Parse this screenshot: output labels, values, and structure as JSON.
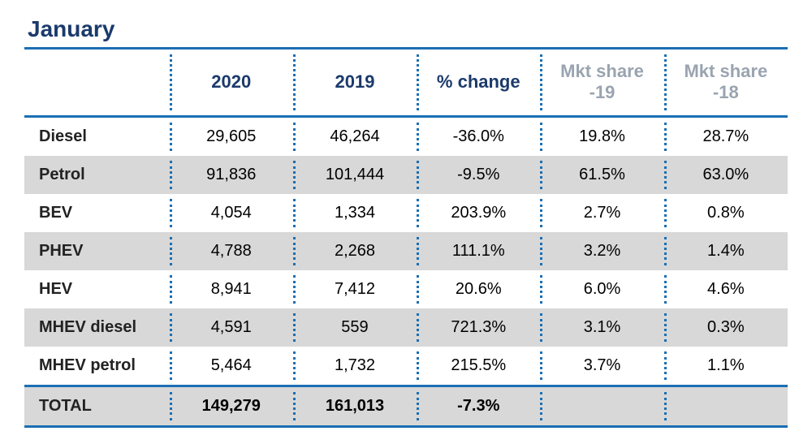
{
  "title": "January",
  "table": {
    "columns": [
      {
        "label": "",
        "muted": false
      },
      {
        "label": "2020",
        "muted": false
      },
      {
        "label": "2019",
        "muted": false
      },
      {
        "label": "% change",
        "muted": false
      },
      {
        "label": "Mkt share -19",
        "muted": true
      },
      {
        "label": "Mkt share -18",
        "muted": true
      }
    ],
    "rows": [
      {
        "label": "Diesel",
        "y2020": "29,605",
        "y2019": "46,264",
        "pct": "-36.0%",
        "s19": "19.8%",
        "s18": "28.7%",
        "stripe": false
      },
      {
        "label": "Petrol",
        "y2020": "91,836",
        "y2019": "101,444",
        "pct": "-9.5%",
        "s19": "61.5%",
        "s18": "63.0%",
        "stripe": true
      },
      {
        "label": "BEV",
        "y2020": "4,054",
        "y2019": "1,334",
        "pct": "203.9%",
        "s19": "2.7%",
        "s18": "0.8%",
        "stripe": false
      },
      {
        "label": "PHEV",
        "y2020": "4,788",
        "y2019": "2,268",
        "pct": "111.1%",
        "s19": "3.2%",
        "s18": "1.4%",
        "stripe": true
      },
      {
        "label": "HEV",
        "y2020": "8,941",
        "y2019": "7,412",
        "pct": "20.6%",
        "s19": "6.0%",
        "s18": "4.6%",
        "stripe": false
      },
      {
        "label": "MHEV diesel",
        "y2020": "4,591",
        "y2019": "559",
        "pct": "721.3%",
        "s19": "3.1%",
        "s18": "0.3%",
        "stripe": true
      },
      {
        "label": "MHEV petrol",
        "y2020": "5,464",
        "y2019": "1,732",
        "pct": "215.5%",
        "s19": "3.7%",
        "s18": "1.1%",
        "stripe": false
      }
    ],
    "total": {
      "label": "TOTAL",
      "y2020": "149,279",
      "y2019": "161,013",
      "pct": "-7.3%",
      "s19": "",
      "s18": ""
    }
  },
  "style": {
    "accent_color": "#1b6fb3",
    "title_color": "#1b3a6b",
    "muted_header_color": "#9aa4b0",
    "stripe_color": "#d8d8d8",
    "background_color": "#ffffff",
    "title_fontsize": 28,
    "header_fontsize": 22,
    "cell_fontsize": 20,
    "border_thick": 3
  }
}
